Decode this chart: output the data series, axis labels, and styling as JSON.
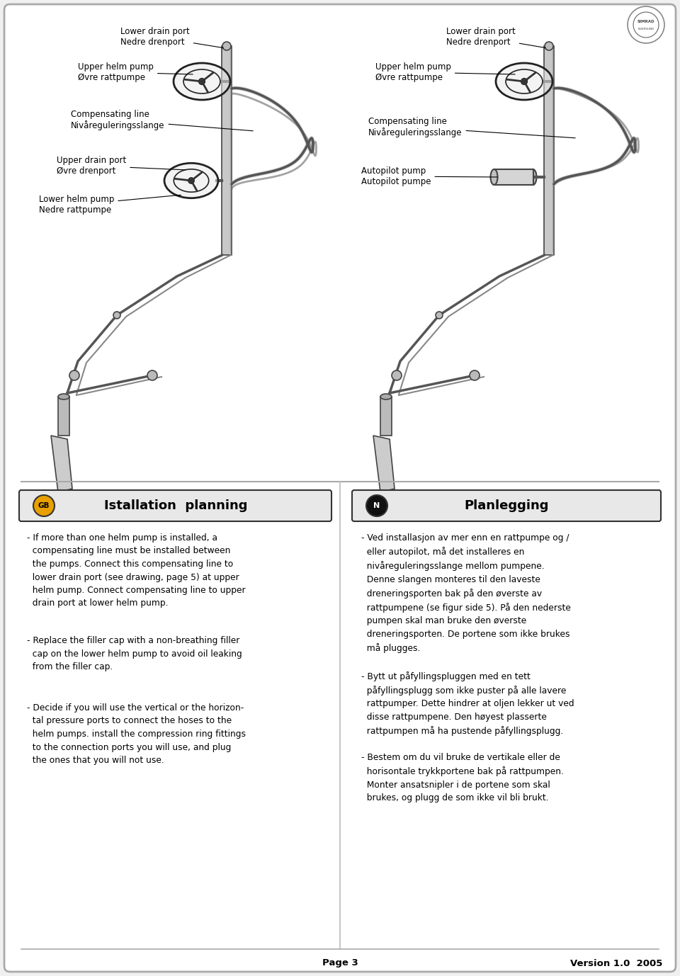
{
  "page_bg": "#f0f0f0",
  "inner_bg": "#ffffff",
  "border_color": "#aaaaaa",
  "title_gb_text": "Istallation  planning",
  "title_n_text": "Planlegging",
  "title_bg": "#e8e8e8",
  "title_border": "#333333",
  "gb_circle_bg": "#f5a000",
  "n_circle_bg": "#111111",
  "footer_left": "Page 3",
  "footer_right": "Version 1.0  2005",
  "text_gb_para1": "- If more than one helm pump is installed, a\n  compensating line must be installed between\n  the pumps. Connect this compensating line to\n  lower drain port (see drawing, page 5) at upper\n  helm pump. Connect compensating line to upper\n  drain port at lower helm pump.",
  "text_gb_para2": "- Replace the filler cap with a non-breathing filler\n  cap on the lower helm pump to avoid oil leaking\n  from the filler cap.",
  "text_gb_para3": "- Decide if you will use the vertical or the horizon-\n  tal pressure ports to connect the hoses to the\n  helm pumps. install the compression ring fittings\n  to the connection ports you will use, and plug\n  the ones that you will not use.",
  "text_n_para1": "- Ved installasjon av mer enn en rattpumpe og /\n  eller autopilot, må det installeres en\n  nivåreguleringsslange mellom pumpene.\n  Denne slangen monteres til den laveste\n  dreneringsporten bak på den øverste av\n  rattpumpene (se figur side 5). På den nederste\n  pumpen skal man bruke den øverste\n  dreneringsporten. De portene som ikke brukes\n  må plugges.",
  "text_n_para2": "- Bytt ut påfyllingspluggen med en tett\n  påfyllingsplugg som ikke puster på alle lavere\n  rattpumper. Dette hindrer at oljen lekker ut ved\n  disse rattpumpene. Den høyest plasserte\n  rattpumpen må ha pustende påfyllingsplugg.",
  "text_n_para3": "- Bestem om du vil bruke de vertikale eller de\n  horisontale trykkportene bak på rattpumpen.\n  Monter ansatsnipler i de portene som skal\n  brukes, og plugg de som ikke vil bli brukt."
}
